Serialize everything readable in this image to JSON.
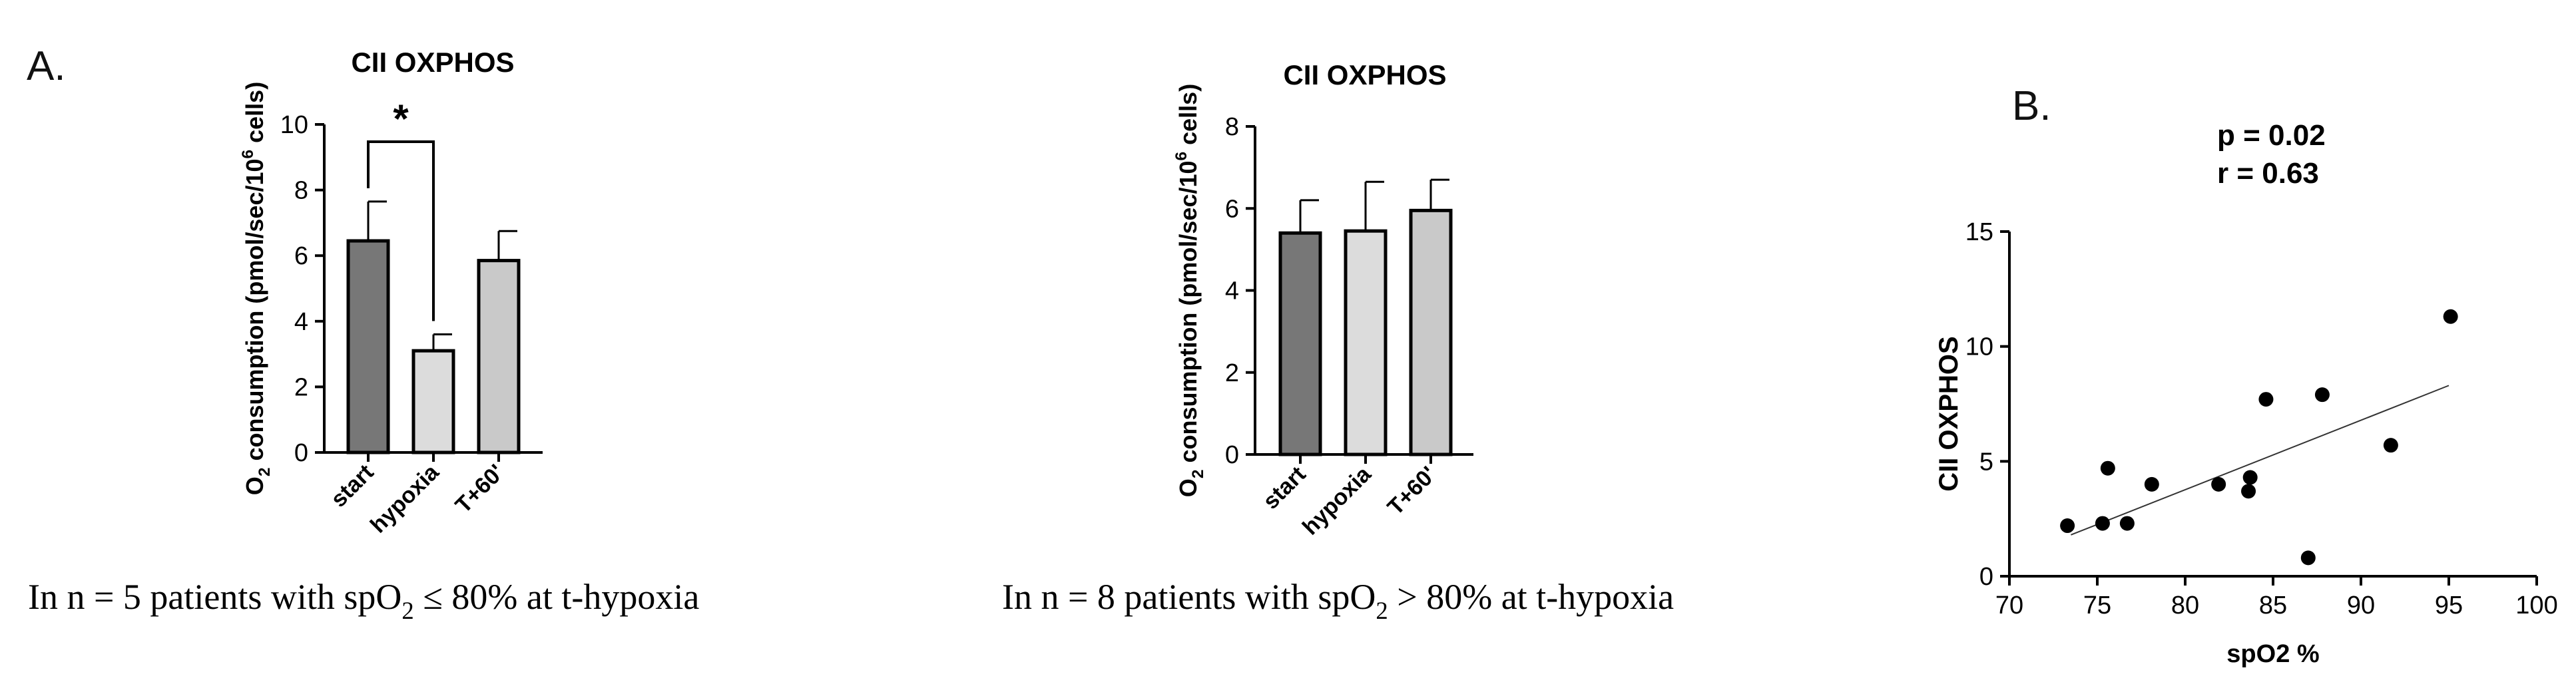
{
  "panel_labels": {
    "a": "A.",
    "b": "B."
  },
  "captions": {
    "a1_parts": [
      "In n = 5 patients with spO",
      "2",
      " ≤ 80% at t-hypoxia"
    ],
    "a2_parts": [
      "In n = 8 patients with spO",
      "2",
      " > 80% at t-hypoxia"
    ]
  },
  "ylabel_parts": [
    "O",
    "2",
    " consumption (pmol/sec/10",
    "6",
    " cells)"
  ],
  "chart_data": [
    {
      "type": "bar",
      "title": "CII OXPHOS",
      "categories": [
        "start",
        "hypoxia",
        "T+60'"
      ],
      "values": [
        6.45,
        3.1,
        5.85
      ],
      "errors": [
        1.2,
        0.5,
        0.9
      ],
      "bar_colors": [
        "#777777",
        "#dcdcdc",
        "#c9c9c9"
      ],
      "ylim": [
        0,
        10
      ],
      "yticks": [
        0,
        2,
        4,
        6,
        8,
        10
      ],
      "significance": {
        "between": [
          "start",
          "hypoxia"
        ],
        "label": "*"
      }
    },
    {
      "type": "bar",
      "title": "CII OXPHOS",
      "categories": [
        "start",
        "hypoxia",
        "T+60'"
      ],
      "values": [
        5.4,
        5.45,
        5.95
      ],
      "errors": [
        0.8,
        1.2,
        0.75
      ],
      "bar_colors": [
        "#777777",
        "#dcdcdc",
        "#c9c9c9"
      ],
      "ylim": [
        0,
        8
      ],
      "yticks": [
        0,
        2,
        4,
        6,
        8
      ]
    },
    {
      "type": "scatter",
      "xlabel": "spO2 %",
      "ylabel": "CII OXPHOS",
      "xlim": [
        70,
        100
      ],
      "ylim": [
        0,
        15
      ],
      "xticks": [
        70,
        75,
        80,
        85,
        90,
        95,
        100
      ],
      "yticks": [
        0,
        5,
        10,
        15
      ],
      "annotations": [
        "p = 0.02",
        "r =  0.63"
      ],
      "points": [
        {
          "x": 73.3,
          "y": 2.2
        },
        {
          "x": 75.3,
          "y": 2.3
        },
        {
          "x": 75.6,
          "y": 4.7
        },
        {
          "x": 76.7,
          "y": 2.3
        },
        {
          "x": 78.1,
          "y": 4.0
        },
        {
          "x": 81.9,
          "y": 4.0
        },
        {
          "x": 83.6,
          "y": 3.7
        },
        {
          "x": 83.7,
          "y": 4.3
        },
        {
          "x": 84.6,
          "y": 7.7
        },
        {
          "x": 87.0,
          "y": 0.8
        },
        {
          "x": 87.8,
          "y": 7.9
        },
        {
          "x": 91.7,
          "y": 5.7
        },
        {
          "x": 95.1,
          "y": 11.3
        }
      ],
      "fit_line": {
        "x": [
          73.5,
          95
        ],
        "y": [
          1.8,
          8.3
        ]
      }
    }
  ]
}
